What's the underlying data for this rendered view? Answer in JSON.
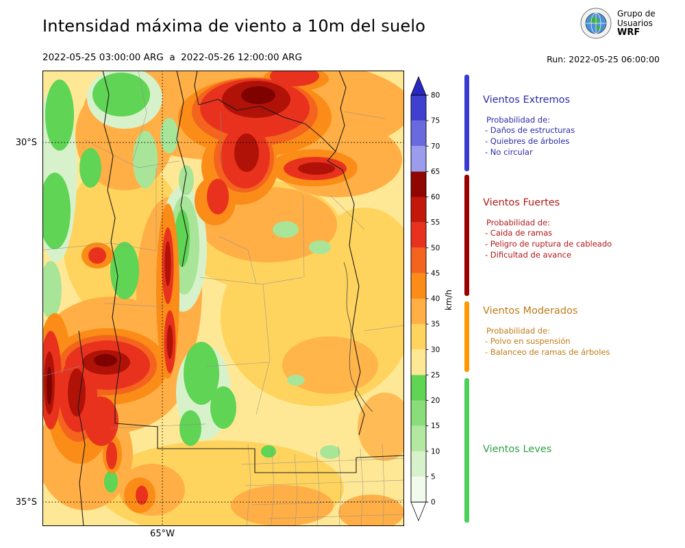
{
  "header": {
    "title": "Intensidad máxima de viento a 10m del suelo",
    "period": "2022-05-25 03:00:00 ARG  a  2022-05-26 12:00:00 ARG",
    "run": "Run: 2022-05-25 06:00:00",
    "logo": {
      "line1": "Grupo de",
      "line2": "Usuarios",
      "line3": "WRF"
    }
  },
  "map": {
    "lat_labels": [
      "30°S",
      "35°S"
    ],
    "lon_label": "65°W"
  },
  "colorbar": {
    "unit": "km/h",
    "levels": [
      0,
      5,
      10,
      15,
      20,
      25,
      30,
      35,
      40,
      45,
      50,
      55,
      60,
      65,
      70,
      75,
      80
    ],
    "colors": [
      "#f2faee",
      "#d7f2cb",
      "#b2e8a0",
      "#8ade79",
      "#5fd455",
      "#ffe895",
      "#ffd45e",
      "#ffaf45",
      "#fb8c17",
      "#f4641e",
      "#e8321e",
      "#c4170c",
      "#8f0500",
      "#9c9cec",
      "#6a6adf",
      "#4040d0"
    ],
    "over_color": "#2828c0",
    "under_color": "#ffffff"
  },
  "legend": {
    "prob_label": "Probabilidad de:",
    "categories": [
      {
        "name": "Vientos Extremos",
        "text_color": "#2a2aa8",
        "bar_color": "#3a3ad0",
        "range": [
          65,
          84
        ],
        "show_prob": true,
        "items": [
          "- Daños de estructuras",
          "- Quiebres de árboles",
          "- No circular"
        ]
      },
      {
        "name": "Vientos Fuertes",
        "text_color": "#b01818",
        "bar_color": "#990000",
        "range": [
          40.6,
          64.4
        ],
        "show_prob": true,
        "items": [
          "- Caida de ramas",
          "- Peligro de ruptura de cableado",
          "- Dificultad de avance"
        ]
      },
      {
        "name": "Vientos Moderados",
        "text_color": "#bf7b16",
        "bar_color": "#ff9800",
        "range": [
          25.6,
          39.4
        ],
        "show_prob": true,
        "items": [
          "- Polvo en suspensión",
          "- Balanceo de ramas de árboles"
        ]
      },
      {
        "name": "Vientos Leves",
        "text_color": "#2f9e44",
        "bar_color": "#4cd05c",
        "range": [
          -4,
          24.4
        ],
        "show_prob": false,
        "items": []
      }
    ]
  }
}
